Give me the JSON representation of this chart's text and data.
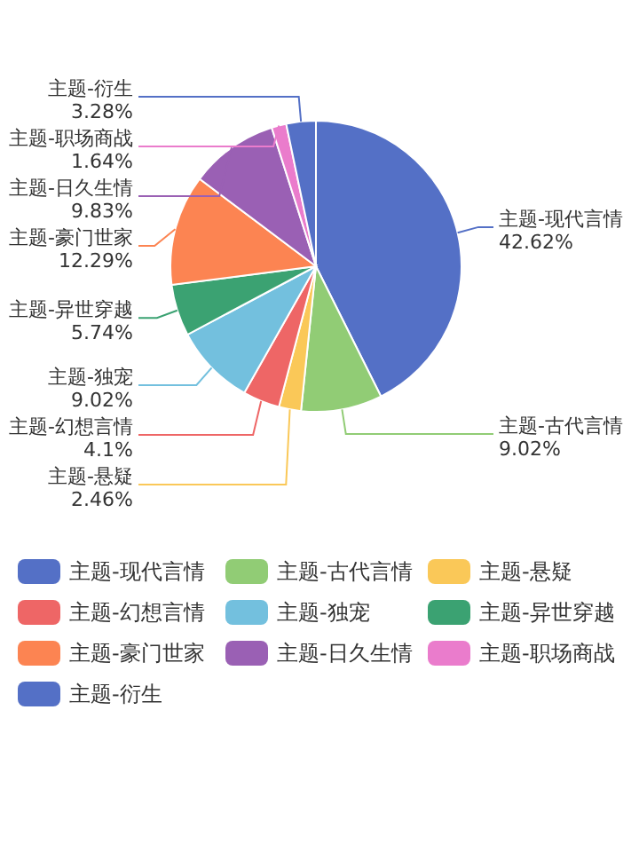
{
  "chart_data": {
    "type": "pie",
    "categories": [
      "主题-现代言情",
      "主题-古代言情",
      "主题-悬疑",
      "主题-幻想言情",
      "主题-独宠",
      "主题-异世穿越",
      "主题-豪门世家",
      "主题-日久生情",
      "主题-职场商战",
      "主题-衍生"
    ],
    "values": [
      42.62,
      9.02,
      2.46,
      4.1,
      9.02,
      5.74,
      12.29,
      9.83,
      1.64,
      3.28
    ],
    "value_labels": [
      "42.62%",
      "9.02%",
      "2.46%",
      "4.1%",
      "9.02%",
      "5.74%",
      "12.29%",
      "9.83%",
      "1.64%",
      "3.28%"
    ],
    "colors": [
      "#5470c6",
      "#91cc75",
      "#fac858",
      "#ee6666",
      "#73c0de",
      "#3ba272",
      "#fc8452",
      "#9a60b4",
      "#ea7ccc",
      "#5470c6"
    ],
    "legend": "bottom"
  }
}
